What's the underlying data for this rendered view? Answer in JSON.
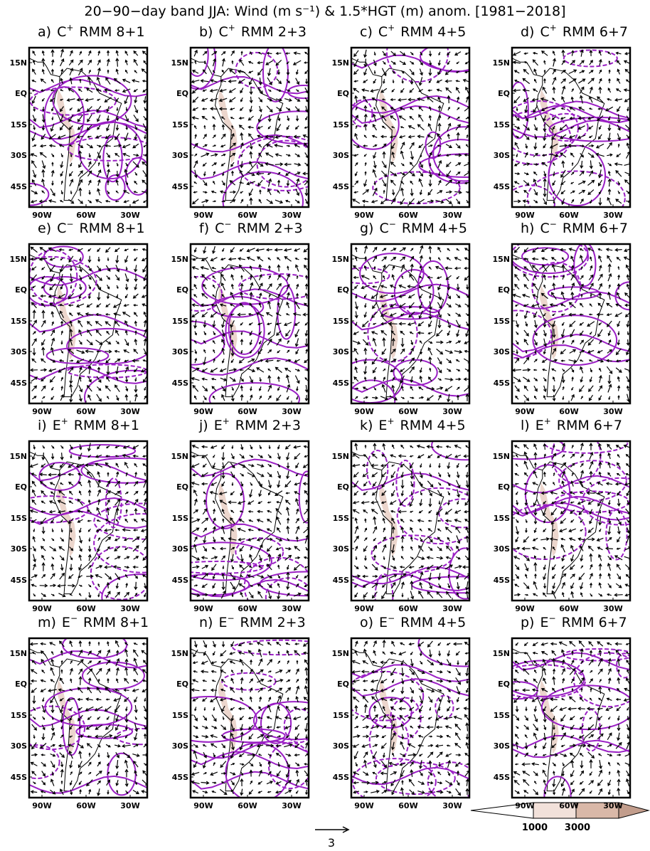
{
  "title": "20−90−day band JJA: Wind (m s⁻¹) & 1.5*HGT (m) anom. [1981−2018]",
  "panels": [
    {
      "letter": "a)",
      "group": "C",
      "sign": "+",
      "phase": "RMM 8+1"
    },
    {
      "letter": "b)",
      "group": "C",
      "sign": "+",
      "phase": "RMM 2+3"
    },
    {
      "letter": "c)",
      "group": "C",
      "sign": "+",
      "phase": "RMM 4+5"
    },
    {
      "letter": "d)",
      "group": "C",
      "sign": "+",
      "phase": "RMM 6+7"
    },
    {
      "letter": "e)",
      "group": "C",
      "sign": "−",
      "phase": "RMM 8+1"
    },
    {
      "letter": "f)",
      "group": "C",
      "sign": "−",
      "phase": "RMM 2+3"
    },
    {
      "letter": "g)",
      "group": "C",
      "sign": "−",
      "phase": "RMM 4+5"
    },
    {
      "letter": "h)",
      "group": "C",
      "sign": "−",
      "phase": "RMM 6+7"
    },
    {
      "letter": "i)",
      "group": "E",
      "sign": "+",
      "phase": "RMM 8+1"
    },
    {
      "letter": "j)",
      "group": "E",
      "sign": "+",
      "phase": "RMM 2+3"
    },
    {
      "letter": "k)",
      "group": "E",
      "sign": "+",
      "phase": "RMM 4+5"
    },
    {
      "letter": "l)",
      "group": "E",
      "sign": "+",
      "phase": "RMM 6+7"
    },
    {
      "letter": "m)",
      "group": "E",
      "sign": "−",
      "phase": "RMM 8+1"
    },
    {
      "letter": "n)",
      "group": "E",
      "sign": "−",
      "phase": "RMM 2+3"
    },
    {
      "letter": "o)",
      "group": "E",
      "sign": "−",
      "phase": "RMM 4+5"
    },
    {
      "letter": "p)",
      "group": "E",
      "sign": "−",
      "phase": "RMM 6+7"
    }
  ],
  "lat_labels": [
    "15N",
    "EQ",
    "15S",
    "30S",
    "45S"
  ],
  "lon_labels": [
    "90W",
    "60W",
    "30W"
  ],
  "reference_vector": "3",
  "colorbar_labels": [
    "1000",
    "3000"
  ]
}
